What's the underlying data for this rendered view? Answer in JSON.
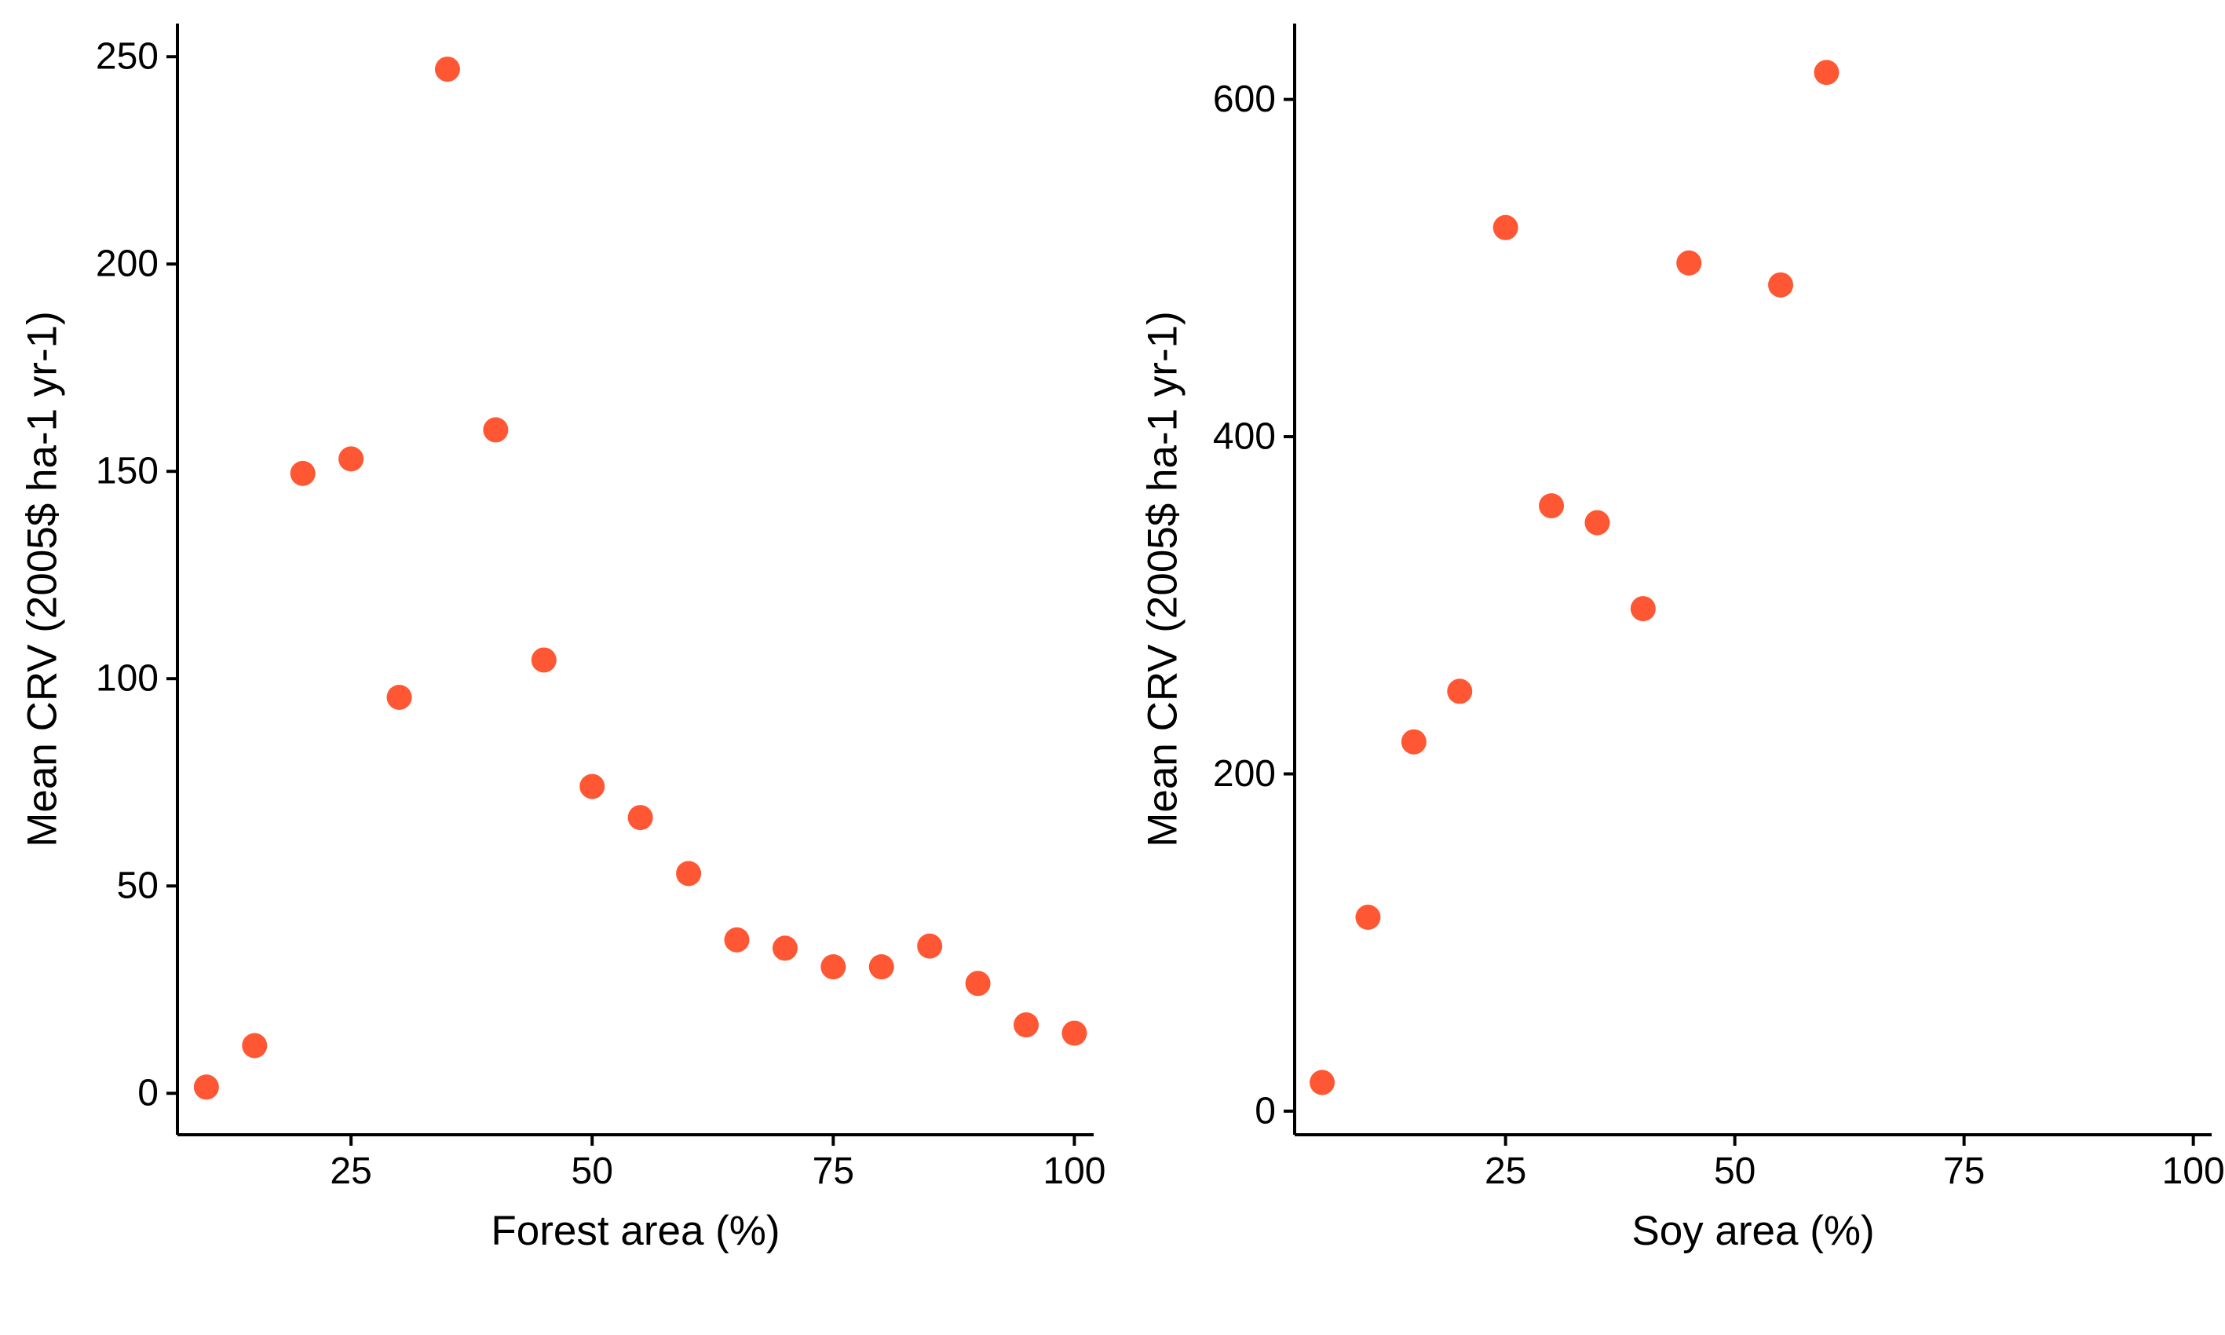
{
  "point_color": "#FF5733",
  "chart_data": [
    {
      "type": "scatter",
      "xlabel": "Forest area (%)",
      "ylabel": "Mean CRV (2005$ ha-1 yr-1)",
      "xlim": [
        7,
        102
      ],
      "ylim": [
        -10,
        258
      ],
      "xticks": [
        25,
        50,
        75,
        100
      ],
      "yticks": [
        0,
        50,
        100,
        150,
        200,
        250
      ],
      "grid": false,
      "x": [
        10,
        15,
        20,
        25,
        30,
        35,
        40,
        45,
        50,
        55,
        60,
        65,
        70,
        75,
        80,
        85,
        90,
        95,
        100
      ],
      "y": [
        1.5,
        11.5,
        149.5,
        153,
        95.5,
        247,
        160,
        104.5,
        74,
        66.5,
        53,
        37,
        35,
        30.5,
        30.5,
        35.5,
        26.5,
        16.5,
        14.5
      ]
    },
    {
      "type": "scatter",
      "xlabel": "Soy area (%)",
      "ylabel": "Mean CRV (2005$ ha-1 yr-1)",
      "xlim": [
        2,
        102
      ],
      "ylim": [
        -14,
        645
      ],
      "xticks": [
        25,
        50,
        75,
        100
      ],
      "yticks": [
        0,
        200,
        400,
        600
      ],
      "grid": false,
      "x": [
        5,
        10,
        15,
        20,
        25,
        30,
        35,
        40,
        45,
        55,
        60
      ],
      "y": [
        17,
        115,
        219,
        249,
        524,
        359,
        349,
        298,
        503,
        490,
        616
      ]
    }
  ]
}
